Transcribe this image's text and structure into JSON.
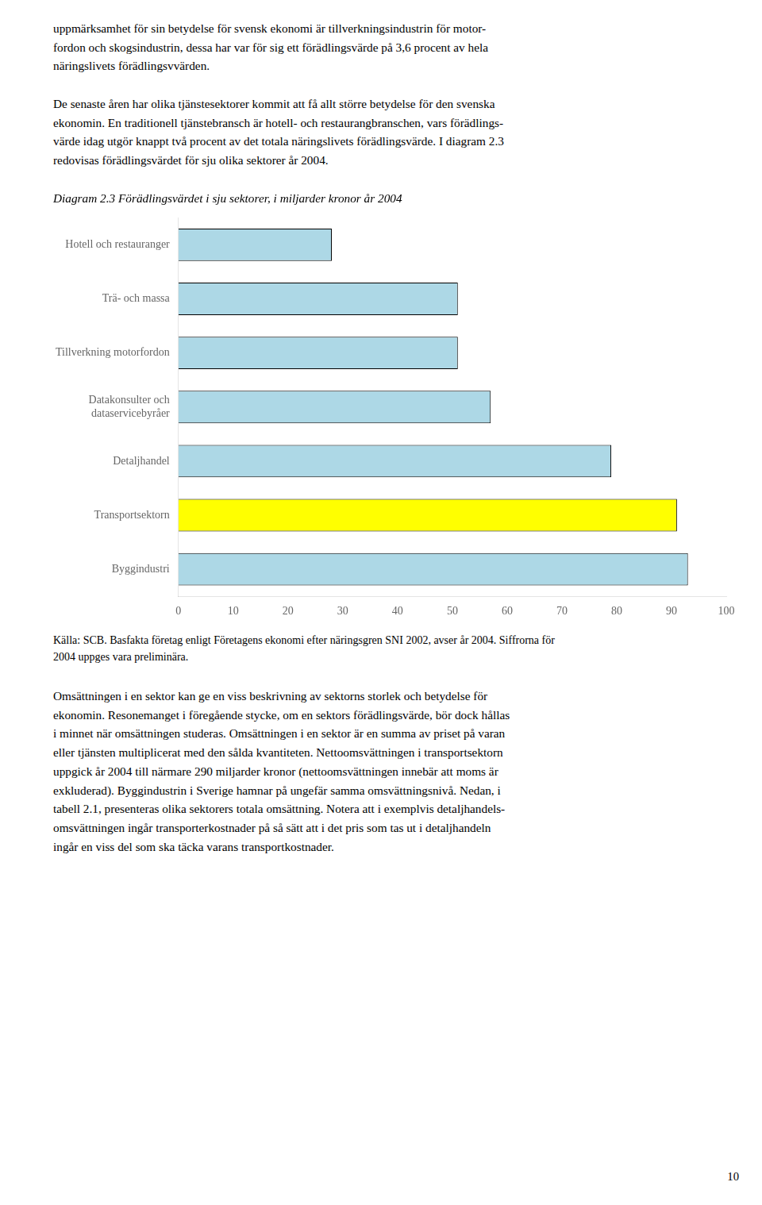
{
  "chart_data": {
    "type": "bar",
    "orientation": "horizontal",
    "title": "Diagram 2.3 Förädlingsvärdet i sju sektorer, i miljarder kronor år 2004",
    "categories": [
      "Hotell och restauranger",
      "Trä- och massa",
      "Tillverkning motorfordon",
      "Datakonsulter och\ndataservicebyråer",
      "Detaljhandel",
      "Transportsektorn",
      "Byggindustri"
    ],
    "values": [
      28,
      51,
      51,
      57,
      79,
      91,
      93
    ],
    "colors": [
      "#ADD8E6",
      "#ADD8E6",
      "#ADD8E6",
      "#ADD8E6",
      "#ADD8E6",
      "#FFFF00",
      "#ADD8E6"
    ],
    "xlim": [
      0,
      100
    ],
    "xticks": [
      0,
      10,
      20,
      30,
      40,
      50,
      60,
      70,
      80,
      90,
      100
    ],
    "grid": false
  },
  "text_before": "uppmärksamhet för sin betydelse för svensk ekonomi är tillverkningsindustrin för motor-\nfordon och skogsindustrin, dessa har var för sig ett förädlingsvärde på 3,6 procent av hela\nnäringslivets förädlingsvvärden.\n\nDe senaste åren har olika tjänstesektorer kommit att få allt större betydelse för den svenska\nekonomin. En traditionell tjänstebransch är hotell- och restaurangbranschen, vars förädlings-\nvärde idag utgör knappt två procent av det totala näringslivets förädlingsvärde. I diagram 2.3\nredovisas förädlingsvärdet för sju olika sektorer år 2004.",
  "source": "Källa: SCB. Basfakta företag enligt Företagens ekonomi efter näringsgren SNI 2002, avser år 2004. Siffrorna för\n2004 uppges vara preliminära.",
  "text_after": "Omsättningen i en sektor kan ge en viss beskrivning av sektorns storlek och betydelse för\nekonomin. Resonemanget i föregående stycke, om en sektors förädlingsvärde, bör dock hållas\ni minnet när omsättningen studeras. Omsättningen i en sektor är en summa av priset på varan\neller tjänsten multiplicerat med den sålda kvantiteten. Nettoomsvättningen i transportsektorn\nuppgick år 2004 till närmare 290 miljarder kronor (nettoomsvättningen innebär att moms är\nexkluderad). Byggindustrin i Sverige hamnar på ungefär samma omsvättningsnivå. Nedan, i\ntabell 2.1, presenteras olika sektorers totala omsättning. Notera att i exemplvis detaljhandels-\nomsvättningen ingår transporterkostnader på så sätt att i det pris som tas ut i detaljhandeln\ningår en viss del som ska täcka varans transportkostnader.",
  "page_number": "10"
}
